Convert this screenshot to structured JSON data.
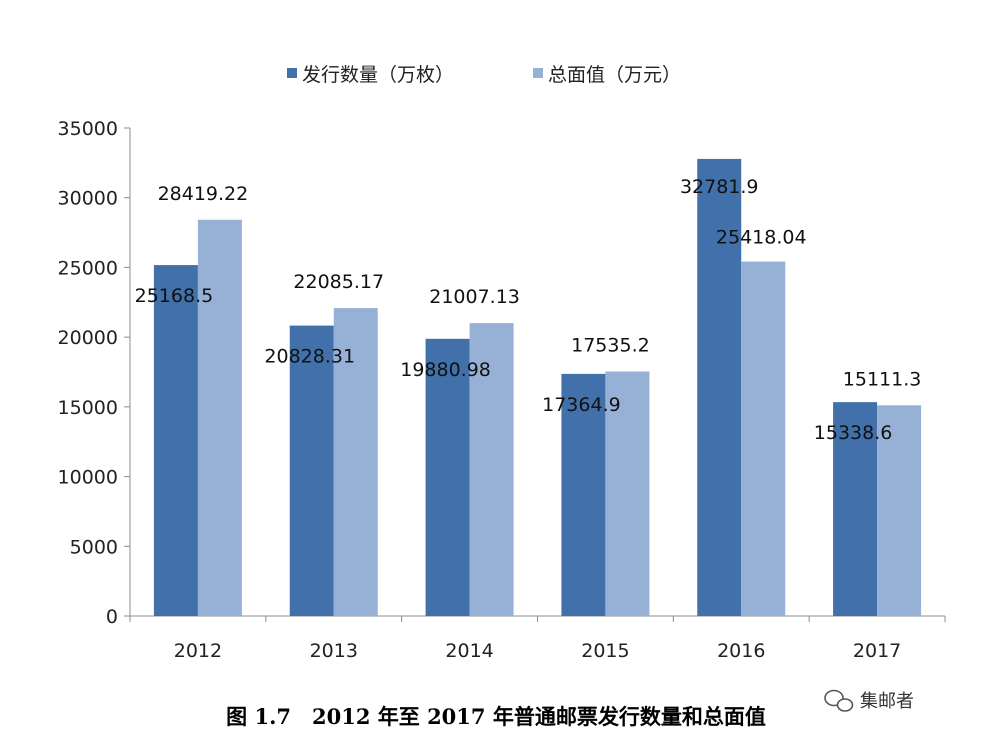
{
  "chart_data": {
    "type": "bar",
    "categories": [
      "2012",
      "2013",
      "2014",
      "2015",
      "2016",
      "2017"
    ],
    "series": [
      {
        "name": "发行数量（万枚）",
        "color": "#4170ab",
        "values": [
          25168.5,
          20828.31,
          19880.98,
          17364.9,
          32781.9,
          15338.6
        ],
        "labels": [
          "25168.5",
          "20828.31",
          "19880.98",
          "17364.9",
          "32781.9",
          "15338.6"
        ]
      },
      {
        "name": "总面值（万元）",
        "color": "#97b1d6",
        "values": [
          28419.22,
          22085.17,
          21007.13,
          17535.2,
          25418.04,
          15111.3
        ],
        "labels": [
          "28419.22",
          "22085.17",
          "21007.13",
          "17535.2",
          "25418.04",
          "15111.3"
        ]
      }
    ],
    "ylim": [
      0,
      35000
    ],
    "yticks": [
      0,
      5000,
      10000,
      15000,
      20000,
      25000,
      30000,
      35000
    ],
    "legend_position": "top-center",
    "grid": false
  },
  "caption": "图 1.7　2012 年至 2017 年普通邮票发行数量和总面值",
  "watermark": "集邮者",
  "watermark_icon": "wechat-icon"
}
